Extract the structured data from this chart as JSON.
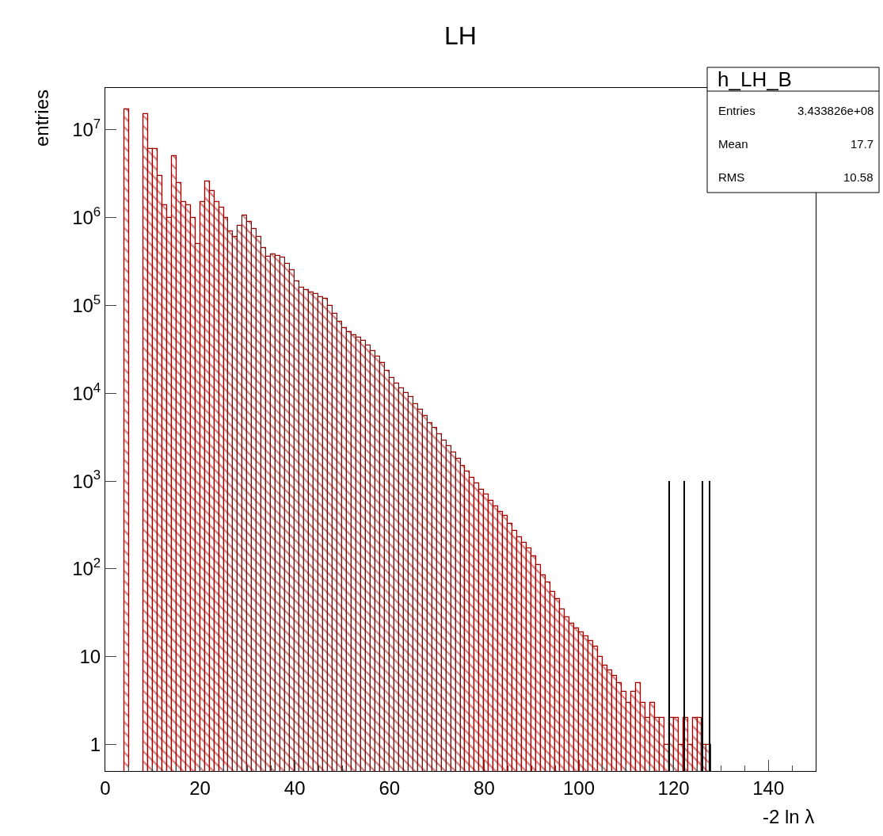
{
  "chart_data": {
    "type": "histogram",
    "title": "LH",
    "xlabel": "-2 ln λ",
    "ylabel": "entries",
    "annotations": [
      "h_LH_B",
      "Entries",
      "3.433826e+08",
      "Mean",
      "17.7",
      "RMS",
      "10.58"
    ],
    "bins": [
      0,
      1,
      2,
      3,
      4,
      5,
      6,
      7,
      8,
      9,
      10,
      11,
      12,
      13,
      14,
      15,
      16,
      17,
      18,
      19,
      20,
      21,
      22,
      23,
      24,
      25,
      26,
      27,
      28,
      29,
      30,
      31,
      32,
      33,
      34,
      35,
      36,
      37,
      38,
      39,
      40,
      41,
      42,
      43,
      44,
      45,
      46,
      47,
      48,
      49,
      50,
      51,
      52,
      53,
      54,
      55,
      56,
      57,
      58,
      59,
      60,
      61,
      62,
      63,
      64,
      65,
      66,
      67,
      68,
      69,
      70,
      71,
      72,
      73,
      74,
      75,
      76,
      77,
      78,
      79,
      80,
      81,
      82,
      83,
      84,
      85,
      86,
      87,
      88,
      89,
      90,
      91,
      92,
      93,
      94,
      95,
      96,
      97,
      98,
      99,
      100,
      101,
      102,
      103,
      104,
      105,
      106,
      107,
      108,
      109,
      110,
      111,
      112,
      113,
      114,
      115,
      116,
      117,
      118,
      119,
      120,
      121,
      122,
      123,
      124,
      125,
      126,
      127,
      128,
      129,
      130,
      131,
      132,
      133,
      134,
      135,
      136,
      137,
      138,
      139,
      140,
      141,
      142,
      143,
      144,
      145,
      146,
      147,
      148,
      149,
      150
    ],
    "series": [
      {
        "color": "#990000",
        "values": [
          null,
          null,
          null,
          null,
          17000000,
          null,
          null,
          null,
          15000000,
          6000000,
          6000000,
          3000000,
          1400000,
          1000000,
          5000000,
          2500000,
          1500000,
          1400000,
          1000000,
          500000,
          1500000,
          2600000,
          2000000,
          1500000,
          1300000,
          1000000,
          700000,
          600000,
          800000,
          1050000,
          900000,
          750000,
          600000,
          450000,
          360000,
          380000,
          370000,
          350000,
          300000,
          250000,
          190000,
          160000,
          150000,
          140000,
          135000,
          125000,
          120000,
          100000,
          80000,
          65000,
          55000,
          50000,
          46000,
          43000,
          40000,
          35000,
          30000,
          26000,
          22000,
          18000,
          15000,
          13000,
          11500,
          10000,
          9000,
          7500,
          6500,
          5500,
          4600,
          4000,
          3400,
          2900,
          2500,
          2100,
          1800,
          1500,
          1300,
          1100,
          940,
          800,
          700,
          600,
          520,
          450,
          400,
          330,
          270,
          230,
          200,
          170,
          140,
          110,
          85,
          70,
          55,
          45,
          35,
          28,
          24,
          21,
          19,
          17,
          15,
          13,
          10,
          8,
          7,
          6,
          5,
          4,
          3,
          4,
          5,
          3,
          2,
          3,
          2,
          2,
          1,
          2,
          2,
          1,
          2,
          1,
          2,
          2,
          1,
          1,
          null,
          null,
          null,
          null,
          null,
          null,
          null,
          null,
          null,
          null,
          null,
          null,
          null,
          null,
          null,
          null,
          null,
          null,
          null,
          null,
          null,
          null
        ]
      },
      {
        "type": "bar",
        "color": "#000000",
        "x": [
          119.1,
          122.3,
          126.1,
          127.6
        ],
        "values": [
          1000,
          1000,
          1000,
          1000
        ]
      }
    ],
    "log": "y",
    "xlim": [
      0,
      150
    ],
    "xticks": [
      0,
      20,
      40,
      60,
      80,
      100,
      120,
      140
    ],
    "ylim": [
      0.5,
      30000000
    ],
    "yticks": [
      1,
      10,
      {
        "value": 100,
        "label": "10$^{2}$"
      },
      {
        "value": 1000,
        "label": "10$^{3}$"
      },
      {
        "value": 10000,
        "label": "10$^{4}$"
      },
      {
        "value": 100000,
        "label": "10$^{5}$"
      },
      {
        "value": 1000000,
        "label": "10$^{6}$"
      },
      {
        "value": 10000000,
        "label": "10$^{7}$"
      }
    ]
  }
}
